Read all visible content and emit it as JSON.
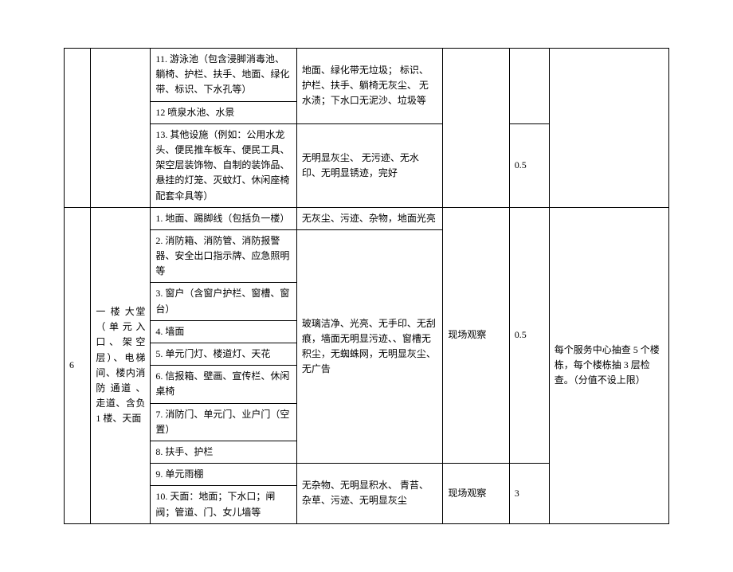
{
  "table": {
    "section5": {
      "r11": {
        "item": "11. 游泳池（包含浸脚消毒池、躺椅、护栏、扶手、地面、绿化带、标识、下水孔等）",
        "std": "地面、绿化带无垃圾；    标识、护栏、扶手、躺椅无灰尘、 无水渍；下水口无泥沙、垃圾等"
      },
      "r12": {
        "item": "12 喷泉水池、水景"
      },
      "r13": {
        "item": "13. 其他设施（例如：公用水龙头、便民推车板车、便民工具、架空层装饰物、自制的装饰品、悬挂的灯笼、灭蚊灯、休闲座椅配套伞具等）",
        "std": "无明显灰尘、    无污迹、无水印、无明显锈迹，完好",
        "score": "0.5"
      }
    },
    "section6": {
      "no": "6",
      "area": "一 楼 大堂（单元入口、架空层）、电梯间、楼内消 防 通道 、 走道、含负1 楼、天面",
      "r1": {
        "item": "1. 地面、踢脚线（包括负一楼）",
        "std": "无灰尘、污迹、杂物，地面光亮"
      },
      "r2": {
        "item": "2. 消防箱、消防管、消防报警器、安全出口指示牌、应急照明等"
      },
      "r3": {
        "item": "3.  窗户（含窗户护栏、窗槽、窗台）"
      },
      "r4": {
        "item": "4. 墙面"
      },
      "r5": {
        "item": "5. 单元门灯、楼道灯、天花"
      },
      "r6": {
        "item": "6. 信报箱、壁画、宣传栏、休闲桌椅"
      },
      "r7": {
        "item": "7. 消防门、单元门、业户门（空置）"
      },
      "r8": {
        "item": "8. 扶手、护栏"
      },
      "stdA": "玻璃洁净、光亮、无手印、无刮痕，墙面无明显污迹、、窗槽无积尘，无蜘蛛网，无明显灰尘、无广告",
      "methodA": "现场观察",
      "scoreA": "0.5",
      "r9": {
        "item": "9. 单元雨棚"
      },
      "r10": {
        "item": "10. 天面：地面；下水口；闸阀；管道、门、女儿墙等"
      },
      "stdB": "无杂物、无明显积水、    青苔、杂草、污迹、无明显灰尘",
      "methodB": "现场观察",
      "scoreB": "3",
      "remark": "每个服务中心抽查    5 个楼栋，每个楼栋抽 3 层检查。（分值不设上限）"
    }
  }
}
